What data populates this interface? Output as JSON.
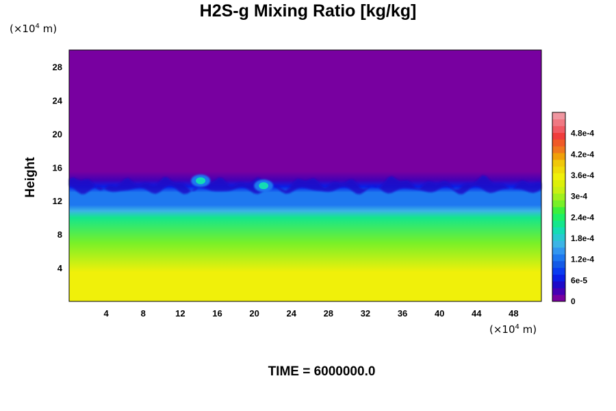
{
  "chart_data": {
    "type": "heatmap",
    "title": "H2S-g Mixing Ratio [kg/kg]",
    "xlabel": "",
    "ylabel": "Height",
    "x_unit_prefix": "(×10",
    "x_unit_exp": "4",
    "x_unit_suffix": " m)",
    "y_unit_prefix": "(×10",
    "y_unit_exp": "4",
    "y_unit_suffix": " m)",
    "xlim": [
      0,
      51
    ],
    "ylim": [
      0,
      30
    ],
    "x_ticks": [
      4,
      8,
      12,
      16,
      20,
      24,
      28,
      32,
      36,
      40,
      44,
      48
    ],
    "y_ticks": [
      4,
      8,
      12,
      16,
      20,
      24,
      28
    ],
    "x_tick_labels": [
      "4",
      "8",
      "12",
      "16",
      "20",
      "24",
      "28",
      "32",
      "36",
      "40",
      "44",
      "48"
    ],
    "y_tick_labels": [
      "4",
      "8",
      "12",
      "16",
      "20",
      "24",
      "28"
    ],
    "height_profile": [
      {
        "y": 0,
        "value": 0.00036
      },
      {
        "y": 3.5,
        "value": 0.00035
      },
      {
        "y": 7,
        "value": 0.00028
      },
      {
        "y": 10,
        "value": 0.00022
      },
      {
        "y": 10.8,
        "value": 0.00016
      },
      {
        "y": 11.5,
        "value": 0.00013
      },
      {
        "y": 13,
        "value": 0.00012
      },
      {
        "y": 13.7,
        "value": 6e-05
      },
      {
        "y": 14.5,
        "value": 2e-05
      },
      {
        "y": 15.5,
        "value": 0.0
      },
      {
        "y": 30,
        "value": 0.0
      }
    ],
    "hotspots": [
      {
        "x": 14.2,
        "y": 14.4,
        "value": 0.00021
      },
      {
        "x": 21.0,
        "y": 13.8,
        "value": 0.00021
      }
    ],
    "colorbar": {
      "min": 0,
      "max": 0.00054,
      "tick_values": [
        0,
        6e-05,
        0.00012,
        0.00018,
        0.00024,
        0.0003,
        0.00036,
        0.00042,
        0.00048
      ],
      "tick_labels": [
        "0",
        "6e-5",
        "1.2e-4",
        "1.8e-4",
        "2.4e-4",
        "3e-4",
        "3.6e-4",
        "4.2e-4",
        "4.8e-4"
      ],
      "colors": [
        "#7800a0",
        "#4600b4",
        "#1e0ac8",
        "#0a1ee6",
        "#0a3cf0",
        "#145ae6",
        "#1e78f0",
        "#3296f0",
        "#3cb4e6",
        "#28c8d2",
        "#14dcb4",
        "#14e68c",
        "#1ef064",
        "#3cf03c",
        "#78f028",
        "#a0f01e",
        "#c8f014",
        "#dcf00a",
        "#f0f00a",
        "#f0dc0a",
        "#f0c80a",
        "#f0a00a",
        "#f0781e",
        "#f05a28",
        "#f03c3c",
        "#f05a64",
        "#f07882",
        "#f096a0"
      ]
    },
    "legend": "right"
  },
  "footer": {
    "time_label": "TIME = 6000000.0"
  }
}
